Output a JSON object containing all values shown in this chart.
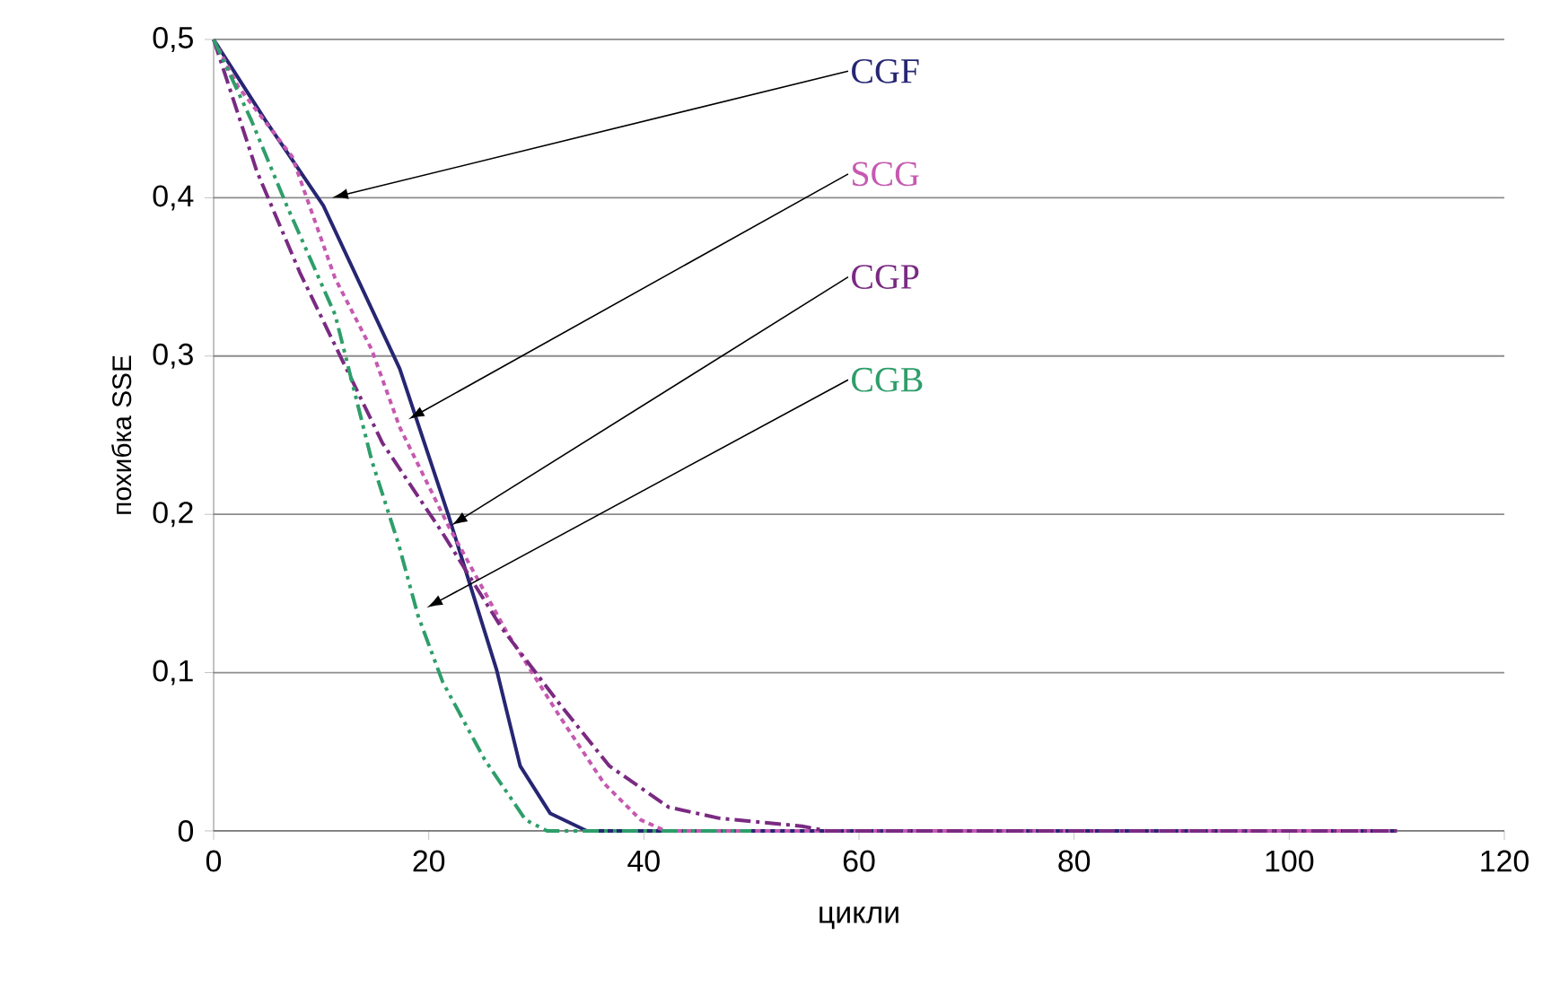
{
  "chart_data": {
    "type": "line",
    "xlabel": "цикли",
    "ylabel": "похибка SSE",
    "x": [
      0,
      4.8,
      10.2,
      17.3,
      21.8,
      26.3,
      28.5,
      31.3,
      34.7,
      40,
      50,
      60,
      70,
      80,
      90,
      100,
      110
    ],
    "series": [
      {
        "name": "CGF",
        "color": "#262673",
        "line_style": "solid",
        "values": [
          0.5,
          0.449,
          0.395,
          0.292,
          0.2,
          0.102,
          0.041,
          0.011,
          0,
          0,
          0,
          0,
          0,
          0,
          0,
          0,
          0
        ]
      },
      {
        "name": "SCG",
        "color": "#c659b0",
        "line_style": "dotted",
        "x": [
          0,
          2.3,
          7.3,
          11.3,
          14.7,
          17.3,
          21.8,
          27.3,
          32.3,
          36.3,
          39.7,
          42,
          60,
          80,
          100,
          110
        ],
        "values": [
          0.5,
          0.47,
          0.426,
          0.349,
          0.304,
          0.255,
          0.193,
          0.125,
          0.071,
          0.03,
          0.007,
          0,
          0,
          0,
          0,
          0
        ]
      },
      {
        "name": "CGP",
        "color": "#7a2a82",
        "line_style": "dashed",
        "x": [
          0,
          4,
          8,
          10.7,
          15.7,
          21.3,
          26.8,
          32.3,
          36.8,
          42.3,
          47,
          54.7,
          57,
          80,
          100,
          110
        ],
        "values": [
          0.5,
          0.417,
          0.353,
          0.315,
          0.245,
          0.188,
          0.128,
          0.079,
          0.041,
          0.015,
          0.008,
          0.003,
          0,
          0,
          0,
          0
        ]
      },
      {
        "name": "CGB",
        "color": "#2e9e6a",
        "line_style": "dashed",
        "x": [
          0,
          3.5,
          6.8,
          11.3,
          14.7,
          17.2,
          19,
          21.3,
          25.2,
          29,
          31,
          40,
          50
        ],
        "values": [
          0.5,
          0.449,
          0.395,
          0.326,
          0.234,
          0.181,
          0.136,
          0.094,
          0.045,
          0.007,
          0,
          0,
          0
        ]
      }
    ],
    "xlim": [
      0,
      120
    ],
    "xticks": [
      0,
      20,
      40,
      60,
      80,
      100,
      120
    ],
    "ylim": [
      0,
      0.5
    ],
    "yticks": [
      0,
      {
        "value": 0.1,
        "label": "0,1"
      },
      {
        "value": 0.2,
        "label": "0,2"
      },
      {
        "value": 0.3,
        "label": "0,3"
      },
      {
        "value": 0.4,
        "label": "0,4"
      },
      {
        "value": 0.5,
        "label": "0,5"
      }
    ],
    "grid": "y",
    "legend": false,
    "marker": "none"
  }
}
